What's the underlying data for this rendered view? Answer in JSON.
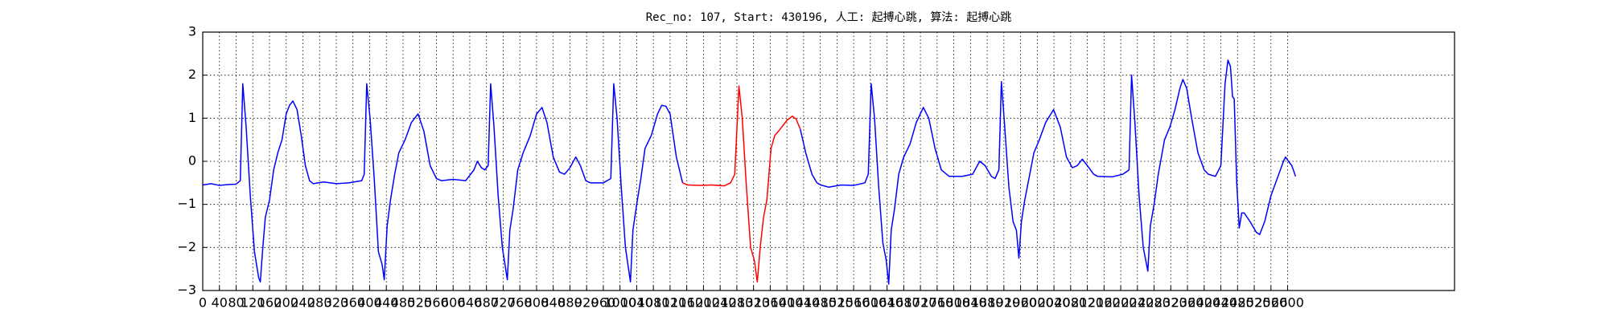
{
  "chart_data": {
    "type": "line",
    "title": "Rec_no: 107, Start: 430196, 人工: 起搏心跳, 算法: 起搏心跳",
    "xlim": [
      0,
      3000
    ],
    "ylim": [
      -3,
      3
    ],
    "xticks": [
      0,
      40,
      80,
      120,
      160,
      200,
      240,
      280,
      320,
      360,
      400,
      440,
      480,
      520,
      560,
      600,
      640,
      680,
      720,
      760,
      800,
      840,
      880,
      920,
      960,
      1000,
      1040,
      1080,
      1120,
      1160,
      1200,
      1240,
      1280,
      1320,
      1360,
      1400,
      1440,
      1480,
      1520,
      1560,
      1600,
      1640,
      1680,
      1720,
      1760,
      1800,
      1840,
      1880,
      1920,
      1960,
      2000,
      2040,
      2080,
      2120,
      2160,
      2200,
      2240,
      2280,
      2320,
      2360,
      2400,
      2440,
      2480,
      2520,
      2560,
      2600
    ],
    "yticks": [
      {
        "value": -3,
        "label": "−3"
      },
      {
        "value": -2,
        "label": "−2"
      },
      {
        "value": -1,
        "label": "−1"
      },
      0,
      1,
      2,
      3
    ],
    "grid": true,
    "series": [
      {
        "color": "#0000ff",
        "x": [
          0,
          20,
          40,
          60,
          80,
          90,
          96,
          104,
          114,
          124,
          134,
          138,
          144,
          150,
          160,
          170,
          180,
          190,
          200,
          208,
          216,
          226,
          236,
          246,
          256,
          265,
          290,
          320,
          350,
          381,
          387,
          393,
          401,
          411,
          421,
          430,
          435,
          442,
          450,
          460,
          470,
          485,
          500,
          516,
          530,
          545,
          560,
          572,
          600,
          630,
          650,
          658,
          668,
          676,
          684,
          690,
          698,
          708,
          718,
          730,
          736,
          744,
          755,
          768,
          785,
          800,
          813,
          825,
          840,
          855,
          867,
          880,
          894,
          905,
          918,
          929,
          960,
          978,
          985,
          993,
          1003,
          1013,
          1025,
          1031,
          1040,
          1050,
          1060,
          1075,
          1090,
          1100,
          1110,
          1120,
          1135,
          1150
        ],
        "values": [
          -0.55,
          -0.52,
          -0.56,
          -0.54,
          -0.53,
          -0.45,
          1.8,
          0.8,
          -0.8,
          -2.1,
          -2.7,
          -2.8,
          -2.0,
          -1.3,
          -0.9,
          -0.2,
          0.2,
          0.5,
          1.1,
          1.3,
          1.4,
          1.2,
          0.6,
          -0.1,
          -0.45,
          -0.52,
          -0.48,
          -0.52,
          -0.5,
          -0.45,
          -0.3,
          1.8,
          1.0,
          -0.4,
          -2.1,
          -2.4,
          -2.75,
          -1.5,
          -0.9,
          -0.3,
          0.2,
          0.5,
          0.9,
          1.1,
          0.7,
          -0.1,
          -0.4,
          -0.45,
          -0.42,
          -0.45,
          -0.2,
          0.0,
          -0.15,
          -0.2,
          -0.1,
          1.8,
          0.8,
          -0.8,
          -2.0,
          -2.75,
          -1.6,
          -1.1,
          -0.2,
          0.2,
          0.6,
          1.1,
          1.25,
          0.9,
          0.1,
          -0.25,
          -0.3,
          -0.15,
          0.1,
          -0.1,
          -0.45,
          -0.5,
          -0.5,
          -0.4,
          1.8,
          1.0,
          -0.6,
          -2.0,
          -2.8,
          -1.6,
          -1.0,
          -0.4,
          0.3,
          0.6,
          1.1,
          1.3,
          1.28,
          1.1,
          0.1,
          -0.5
        ]
      },
      {
        "color": "#ff0000",
        "x": [
          1150,
          1162,
          1190,
          1220,
          1250,
          1265,
          1275,
          1285,
          1293,
          1303,
          1313,
          1322,
          1329,
          1336,
          1344,
          1352,
          1362,
          1371,
          1380,
          1388,
          1400,
          1413,
          1422,
          1432
        ],
        "values": [
          -0.5,
          -0.55,
          -0.56,
          -0.55,
          -0.57,
          -0.5,
          -0.3,
          1.75,
          1.0,
          -0.6,
          -2.0,
          -2.3,
          -2.8,
          -2.0,
          -1.3,
          -0.9,
          0.3,
          0.6,
          0.7,
          0.8,
          0.95,
          1.05,
          0.98,
          0.75
        ]
      },
      {
        "color": "#0000ff",
        "x": [
          1432,
          1445,
          1460,
          1472,
          1481,
          1500,
          1530,
          1560,
          1587,
          1595,
          1602,
          1610,
          1620,
          1630,
          1638,
          1644,
          1650,
          1658,
          1668,
          1680,
          1695,
          1710,
          1727,
          1740,
          1755,
          1770,
          1789,
          1820,
          1845,
          1862,
          1875,
          1890,
          1899,
          1908,
          1914,
          1922,
          1932,
          1942,
          1950,
          1956,
          1962,
          1970,
          1980,
          1992,
          2005,
          2020,
          2039,
          2055,
          2070,
          2084,
          2096,
          2108,
          2120,
          2135,
          2145,
          2180,
          2205,
          2220,
          2226,
          2234,
          2244,
          2254,
          2265,
          2271,
          2280,
          2290,
          2305,
          2318,
          2330,
          2342,
          2349,
          2358,
          2370,
          2385,
          2400,
          2410,
          2427,
          2440,
          2450,
          2457,
          2463,
          2468,
          2472,
          2478,
          2484,
          2490,
          2496,
          2510,
          2525,
          2533,
          2545,
          2560,
          2575,
          2590,
          2595,
          2602,
          2610,
          2619
        ],
        "values": [
          0.75,
          0.2,
          -0.3,
          -0.5,
          -0.55,
          -0.6,
          -0.55,
          -0.56,
          -0.5,
          -0.3,
          1.8,
          1.0,
          -0.6,
          -1.9,
          -2.3,
          -2.85,
          -1.6,
          -1.1,
          -0.3,
          0.1,
          0.4,
          0.9,
          1.25,
          1.0,
          0.3,
          -0.2,
          -0.35,
          -0.35,
          -0.3,
          0.0,
          -0.1,
          -0.35,
          -0.4,
          -0.2,
          1.85,
          0.8,
          -0.6,
          -1.4,
          -1.6,
          -2.25,
          -1.4,
          -0.9,
          -0.4,
          0.2,
          0.5,
          0.9,
          1.2,
          0.8,
          0.1,
          -0.15,
          -0.1,
          0.05,
          -0.1,
          -0.3,
          -0.35,
          -0.36,
          -0.3,
          -0.2,
          2.0,
          0.9,
          -0.8,
          -2.0,
          -2.55,
          -1.5,
          -1.0,
          -0.3,
          0.5,
          0.8,
          1.2,
          1.7,
          1.9,
          1.7,
          1.0,
          0.2,
          -0.2,
          -0.3,
          -0.35,
          -0.1,
          1.8,
          2.35,
          2.2,
          1.5,
          1.45,
          -0.5,
          -1.55,
          -1.2,
          -1.2,
          -1.4,
          -1.65,
          -1.7,
          -1.4,
          -0.8,
          -0.4,
          0.0,
          0.1,
          0.0,
          -0.1,
          -0.35
        ]
      }
    ]
  }
}
